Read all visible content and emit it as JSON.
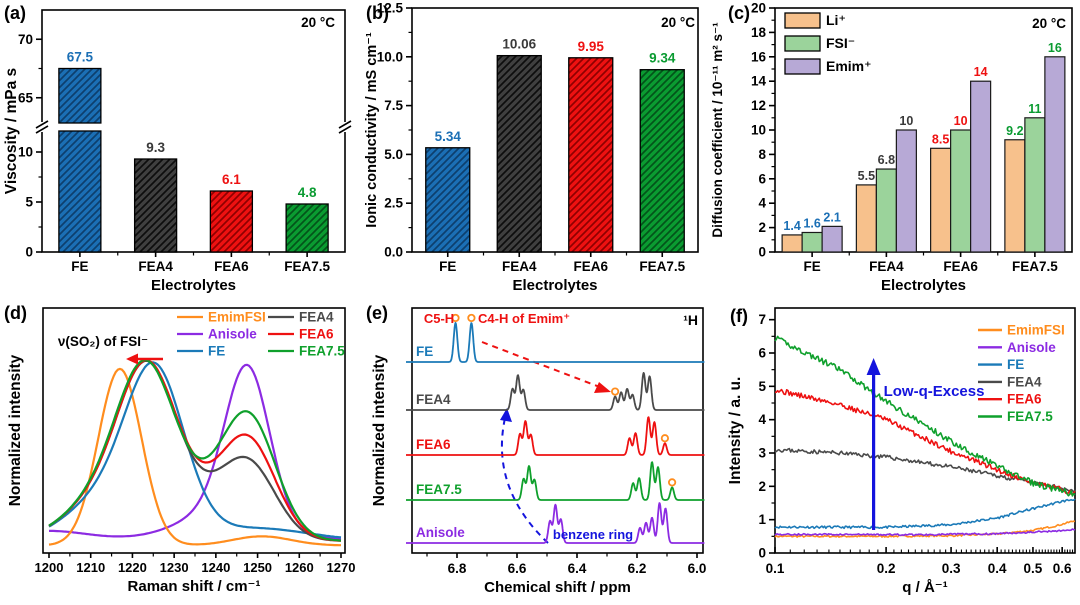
{
  "panel_letters": [
    "(a)",
    "(b)",
    "(c)",
    "(d)",
    "(e)",
    "(f)"
  ],
  "chart_data": [
    {
      "id": "a",
      "type": "bar",
      "letter": "(a)",
      "temp_label": "20 °C",
      "ylabel": "Viscosity / mPa s",
      "xlabel": "Electrolytes",
      "categories": [
        "FE",
        "FEA4",
        "FEA6",
        "FEA7.5"
      ],
      "values": [
        67.5,
        9.3,
        6.1,
        4.8
      ],
      "value_labels": [
        "67.5",
        "9.3",
        "6.1",
        "4.8"
      ],
      "bar_colors": [
        "#1b6fb5",
        "#3f3f3f",
        "#ee1111",
        "#0a9b31"
      ],
      "hatch_colors": [
        "#0d3f6e",
        "#0d0d0d",
        "#8f0000",
        "#03541a"
      ],
      "label_colors": [
        "#1b6fb5",
        "#3a3a3a",
        "#ee1111",
        "#0a9b31"
      ],
      "axis_break": {
        "lower_max": 12.5,
        "upper_min": 62.5,
        "upper_max": 72.5
      },
      "yticks_lower": [
        0,
        5,
        10
      ],
      "yticks_upper": [
        65,
        70
      ],
      "yminor_lower": [
        2.5,
        7.5
      ],
      "yminor_upper": [
        67.5
      ]
    },
    {
      "id": "b",
      "type": "bar",
      "letter": "(b)",
      "temp_label": "20 °C",
      "ylabel": "Ionic conductivity / mS cm⁻¹",
      "xlabel": "Electrolytes",
      "categories": [
        "FE",
        "FEA4",
        "FEA6",
        "FEA7.5"
      ],
      "values": [
        5.34,
        10.06,
        9.95,
        9.34
      ],
      "value_labels": [
        "5.34",
        "10.06",
        "9.95",
        "9.34"
      ],
      "bar_colors": [
        "#1b6fb5",
        "#3f3f3f",
        "#ee1111",
        "#0a9b31"
      ],
      "hatch_colors": [
        "#0d3f6e",
        "#0d0d0d",
        "#8f0000",
        "#03541a"
      ],
      "label_colors": [
        "#1b6fb5",
        "#3a3a3a",
        "#ee1111",
        "#0a9b31"
      ],
      "ylim": [
        0,
        12.5
      ],
      "yticks": [
        0,
        2.5,
        5,
        7.5,
        10,
        12.5
      ],
      "ytick_labels": [
        "0.0",
        "2.5",
        "5.0",
        "7.5",
        "10.0",
        "12.5"
      ]
    },
    {
      "id": "c",
      "type": "grouped-bar",
      "letter": "(c)",
      "temp_label": "20 °C",
      "ylabel": "Diffusion coefficient / 10⁻¹¹ m² s⁻¹",
      "xlabel": "Electrolytes",
      "categories": [
        "FE",
        "FEA4",
        "FEA6",
        "FEA7.5"
      ],
      "series": [
        {
          "name": "Li⁺",
          "color": "#f7c18c",
          "values": [
            1.4,
            5.5,
            8.5,
            9.2
          ]
        },
        {
          "name": "FSI⁻",
          "color": "#9bd39b",
          "values": [
            1.6,
            6.8,
            10,
            11
          ]
        },
        {
          "name": "Emim⁺",
          "color": "#b7a9d6",
          "values": [
            2.1,
            10,
            14,
            16
          ]
        }
      ],
      "value_labels": [
        [
          "1.4",
          "1.6",
          "2.1"
        ],
        [
          "5.5",
          "6.8",
          "10"
        ],
        [
          "8.5",
          "10",
          "14"
        ],
        [
          "9.2",
          "11",
          "16"
        ]
      ],
      "group_label_colors": [
        "#1b6fb5",
        "#3a3a3a",
        "#ee1111",
        "#0a9b31"
      ],
      "ylim": [
        0,
        20
      ],
      "yticks": [
        0,
        2,
        4,
        6,
        8,
        10,
        12,
        14,
        16,
        18,
        20
      ]
    },
    {
      "id": "d",
      "type": "line",
      "letter": "(d)",
      "xlabel": "Raman shift / cm⁻¹",
      "ylabel": "Normalized intensity",
      "annotation": "ν(SO₂) of FSI⁻",
      "xlim": [
        1200,
        1270
      ],
      "xticks": [
        1200,
        1210,
        1220,
        1230,
        1240,
        1250,
        1260,
        1270
      ],
      "legend_cols": [
        [
          "EmimFSI",
          "Anisole",
          "FE"
        ],
        [
          "FEA4",
          "FEA6",
          "FEA7.5"
        ]
      ],
      "series": [
        {
          "name": "Anisole",
          "color": "#8c2be2",
          "base": 0.06,
          "peaks": [
            [
              1247.6,
              5.3,
              0.82
            ],
            [
              1242,
              10,
              0.16
            ],
            [
              1200,
              9,
              0.045
            ]
          ]
        },
        {
          "name": "EmimFSI",
          "color": "#ff8d1e",
          "base": 0.025,
          "peaks": [
            [
              1217,
              5.2,
              0.97
            ],
            [
              1251,
              7,
              0.05
            ]
          ]
        },
        {
          "name": "FE",
          "color": "#1b7ab8",
          "base": 0.05,
          "peaks": [
            [
              1225.5,
              7,
              0.88
            ],
            [
              1213,
              9,
              0.22
            ],
            [
              1249,
              13,
              0.07
            ]
          ]
        },
        {
          "name": "FEA4",
          "color": "#4a4a4a",
          "base": 0.05,
          "peaks": [
            [
              1223.5,
              7,
              0.86
            ],
            [
              1211.5,
              8.5,
              0.2
            ],
            [
              1237,
              9,
              0.17
            ],
            [
              1248,
              6.5,
              0.37
            ]
          ]
        },
        {
          "name": "FEA6",
          "color": "#ee1111",
          "base": 0.05,
          "peaks": [
            [
              1223.5,
              7,
              0.86
            ],
            [
              1211.5,
              8.5,
              0.2
            ],
            [
              1237,
              9,
              0.18
            ],
            [
              1248,
              6.5,
              0.49
            ]
          ]
        },
        {
          "name": "FEA7.5",
          "color": "#0fa02c",
          "base": 0.05,
          "peaks": [
            [
              1223.2,
              7,
              0.86
            ],
            [
              1211.5,
              8.5,
              0.2
            ],
            [
              1237,
              9,
              0.18
            ],
            [
              1248,
              6.5,
              0.62
            ]
          ]
        }
      ]
    },
    {
      "id": "e",
      "type": "nmr-stack",
      "letter": "(e)",
      "xlabel": "Chemical shift / ppm",
      "ylabel": "Normalized intensity",
      "nucleus_label": "¹H",
      "xticks": [
        6.8,
        6.6,
        6.4,
        6.2,
        6.0
      ],
      "xtick_labels": [
        "6.8",
        "6.6",
        "6.4",
        "6.2",
        "6.0"
      ],
      "xminor": [
        6.9,
        6.7,
        6.5,
        6.3,
        6.1
      ],
      "xlim": [
        6.95,
        5.98
      ],
      "rows": [
        {
          "name": "FE",
          "color": "#1b7ab8",
          "peaks": [
            [
              6.805,
              0.93
            ],
            [
              6.752,
              0.93
            ]
          ],
          "circles": [
            6.805,
            6.752
          ]
        },
        {
          "name": "FEA4",
          "color": "#4a4a4a",
          "peaks": [
            [
              6.615,
              0.5
            ],
            [
              6.597,
              0.82
            ],
            [
              6.579,
              0.48
            ],
            [
              6.273,
              0.32
            ],
            [
              6.253,
              0.42
            ],
            [
              6.233,
              0.5
            ],
            [
              6.215,
              0.36
            ],
            [
              6.178,
              0.88
            ],
            [
              6.158,
              0.8
            ]
          ],
          "circles": [
            6.273
          ]
        },
        {
          "name": "FEA6",
          "color": "#ee1111",
          "peaks": [
            [
              6.59,
              0.5
            ],
            [
              6.572,
              0.8
            ],
            [
              6.554,
              0.48
            ],
            [
              6.225,
              0.4
            ],
            [
              6.205,
              0.52
            ],
            [
              6.162,
              0.9
            ],
            [
              6.142,
              0.78
            ],
            [
              6.107,
              0.28
            ]
          ],
          "circles": [
            6.107
          ]
        },
        {
          "name": "FEA7.5",
          "color": "#0fa02c",
          "peaks": [
            [
              6.578,
              0.5
            ],
            [
              6.56,
              0.8
            ],
            [
              6.542,
              0.48
            ],
            [
              6.213,
              0.4
            ],
            [
              6.193,
              0.52
            ],
            [
              6.15,
              0.9
            ],
            [
              6.13,
              0.78
            ],
            [
              6.083,
              0.3
            ]
          ],
          "circles": [
            6.083
          ]
        },
        {
          "name": "Anisole",
          "color": "#8c2be2",
          "peaks": [
            [
              6.49,
              0.52
            ],
            [
              6.472,
              0.9
            ],
            [
              6.454,
              0.56
            ],
            [
              6.19,
              0.36
            ],
            [
              6.17,
              0.48
            ],
            [
              6.15,
              0.6
            ],
            [
              6.125,
              0.95
            ],
            [
              6.105,
              0.82
            ]
          ],
          "circles": []
        }
      ],
      "annotations": {
        "c5": "C5-H",
        "c4": "C4-H of Emim⁺",
        "benzene": "benzene ring"
      }
    },
    {
      "id": "f",
      "type": "noisy-line",
      "letter": "(f)",
      "xlabel": "q / Å⁻¹",
      "ylabel": "Intensity / a. u.",
      "annotation": "Low-q-Excess",
      "arrow_q": 0.185,
      "xlog_lim": [
        0.1,
        0.65
      ],
      "xticks": [
        0.1,
        0.2,
        0.3,
        0.4,
        0.5,
        0.6
      ],
      "xtick_labels": [
        "0.1",
        "0.2",
        "0.3",
        "0.4",
        "0.5",
        "0.6"
      ],
      "yticks": [
        0,
        1,
        2,
        3,
        4,
        5,
        6,
        7
      ],
      "ylim": [
        0,
        7.35
      ],
      "legend": [
        "EmimFSI",
        "Anisole",
        "FE",
        "FEA4",
        "FEA6",
        "FEA7.5"
      ],
      "series": [
        {
          "name": "FE",
          "color": "#1b7ab8",
          "noise": 0.035,
          "seed": 11,
          "anchors": [
            [
              0.1,
              0.78
            ],
            [
              0.2,
              0.77
            ],
            [
              0.3,
              0.85
            ],
            [
              0.4,
              1.05
            ],
            [
              0.5,
              1.33
            ],
            [
              0.6,
              1.55
            ],
            [
              0.65,
              1.62
            ]
          ]
        },
        {
          "name": "EmimFSI",
          "color": "#ff8d1e",
          "noise": 0.025,
          "seed": 7,
          "anchors": [
            [
              0.1,
              0.5
            ],
            [
              0.2,
              0.5
            ],
            [
              0.3,
              0.52
            ],
            [
              0.4,
              0.57
            ],
            [
              0.5,
              0.68
            ],
            [
              0.58,
              0.82
            ],
            [
              0.65,
              0.97
            ]
          ]
        },
        {
          "name": "Anisole",
          "color": "#8c2be2",
          "noise": 0.025,
          "seed": 5,
          "anchors": [
            [
              0.1,
              0.56
            ],
            [
              0.25,
              0.55
            ],
            [
              0.4,
              0.58
            ],
            [
              0.55,
              0.65
            ],
            [
              0.65,
              0.7
            ]
          ]
        },
        {
          "name": "FEA4",
          "color": "#4a4a4a",
          "noise": 0.06,
          "seed": 23,
          "anchors": [
            [
              0.1,
              3.1
            ],
            [
              0.15,
              3.0
            ],
            [
              0.2,
              2.88
            ],
            [
              0.3,
              2.58
            ],
            [
              0.4,
              2.32
            ],
            [
              0.5,
              2.1
            ],
            [
              0.6,
              1.95
            ],
            [
              0.65,
              1.85
            ]
          ]
        },
        {
          "name": "FEA6",
          "color": "#ee1111",
          "noise": 0.08,
          "seed": 31,
          "anchors": [
            [
              0.1,
              4.9
            ],
            [
              0.15,
              4.45
            ],
            [
              0.2,
              4.0
            ],
            [
              0.3,
              3.05
            ],
            [
              0.4,
              2.5
            ],
            [
              0.5,
              2.1
            ],
            [
              0.6,
              1.9
            ],
            [
              0.65,
              1.8
            ]
          ]
        },
        {
          "name": "FEA7.5",
          "color": "#0fa02c",
          "noise": 0.09,
          "seed": 41,
          "anchors": [
            [
              0.1,
              6.45
            ],
            [
              0.15,
              5.5
            ],
            [
              0.2,
              4.55
            ],
            [
              0.3,
              3.35
            ],
            [
              0.4,
              2.6
            ],
            [
              0.5,
              2.1
            ],
            [
              0.6,
              1.85
            ],
            [
              0.65,
              1.75
            ]
          ]
        }
      ]
    }
  ]
}
